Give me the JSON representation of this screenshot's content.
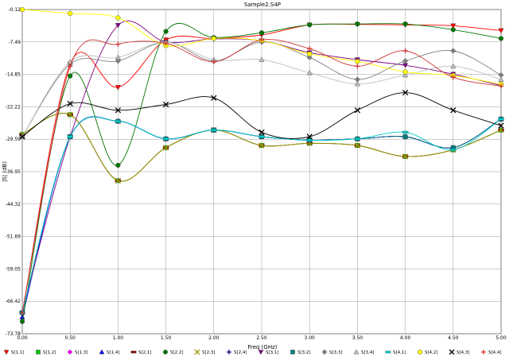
{
  "chart_data": {
    "type": "line",
    "title": "Sample2.S4P",
    "xlabel": "Freq (GHz)",
    "ylabel": "|S| (dB)",
    "xlim": [
      0,
      5
    ],
    "ylim": [
      -73.78,
      -0.12
    ],
    "xticks": [
      "0.00",
      "0.50",
      "1.00",
      "1.50",
      "2.00",
      "2.50",
      "3.00",
      "3.50",
      "4.00",
      "4.50",
      "5.00"
    ],
    "yticks": [
      "-0.12",
      "-7.49",
      "-14.85",
      "-22.22",
      "-29.59",
      "-36.95",
      "-44.32",
      "-51.69",
      "-59.05",
      "-66.42",
      "-73.78"
    ],
    "grid": true,
    "legend_position": "bottom",
    "series": [
      {
        "name": "S[1,1]",
        "color": "#ff0000",
        "marker": "triangle-down",
        "x": [
          0,
          0.5,
          1.0,
          1.5,
          2.0,
          2.5,
          3.0,
          3.5,
          4.0,
          4.5,
          5.0
        ],
        "y": [
          -69.0,
          -12.5,
          -17.8,
          -7.0,
          -6.7,
          -5.9,
          -3.6,
          -3.5,
          -3.6,
          -3.8,
          -4.9
        ]
      },
      {
        "name": "S[1,2]",
        "color": "#00cc00",
        "marker": "square",
        "x": [
          0,
          0.5,
          1.0,
          1.5,
          2.0,
          2.5,
          3.0,
          3.5,
          4.0,
          4.5,
          5.0
        ],
        "y": [
          -28.5,
          -24.0,
          -39.0,
          -31.5,
          -27.5,
          -31.0,
          -30.5,
          -31.0,
          -33.5,
          -32.0,
          -27.5
        ]
      },
      {
        "name": "S[1,3]",
        "color": "#ff00ff",
        "marker": "diamond",
        "x": [
          0,
          0.5,
          1.0,
          1.5,
          2.0,
          2.5,
          3.0,
          3.5,
          4.0,
          4.5,
          5.0
        ],
        "y": [
          -69.0,
          -29.0,
          -25.5,
          -29.5,
          -27.5,
          -29.0,
          -29.8,
          -29.5,
          -29.0,
          -31.5,
          -25.0
        ]
      },
      {
        "name": "S[1,4]",
        "color": "#0000ff",
        "marker": "triangle-up",
        "x": [
          0,
          0.5,
          1.0,
          1.5,
          2.0,
          2.5,
          3.0,
          3.5,
          4.0,
          4.5,
          5.0
        ],
        "y": [
          -70.0,
          -29.0,
          -25.5,
          -29.5,
          -27.5,
          -29.0,
          -29.8,
          -29.5,
          -29.0,
          -31.5,
          -25.0
        ]
      },
      {
        "name": "S[2,1]",
        "color": "#800000",
        "marker": "dash",
        "x": [
          0,
          0.5,
          1.0,
          1.5,
          2.0,
          2.5,
          3.0,
          3.5,
          4.0,
          4.5,
          5.0
        ],
        "y": [
          -28.5,
          -24.0,
          -39.0,
          -31.5,
          -27.5,
          -31.0,
          -30.5,
          -31.0,
          -33.5,
          -32.0,
          -27.5
        ]
      },
      {
        "name": "S[2,2]",
        "color": "#007700",
        "marker": "circle",
        "x": [
          0,
          0.5,
          1.0,
          1.5,
          2.0,
          2.5,
          3.0,
          3.5,
          4.0,
          4.5,
          5.0
        ],
        "y": [
          -71.0,
          -15.2,
          -35.5,
          -5.1,
          -6.5,
          -5.4,
          -3.6,
          -3.4,
          -3.4,
          -4.7,
          -6.7
        ]
      },
      {
        "name": "S[2,3]",
        "color": "#999900",
        "marker": "x",
        "x": [
          0,
          0.5,
          1.0,
          1.5,
          2.0,
          2.5,
          3.0,
          3.5,
          4.0,
          4.5,
          5.0
        ],
        "y": [
          -28.5,
          -24.0,
          -39.0,
          -31.5,
          -27.5,
          -31.0,
          -30.5,
          -31.0,
          -33.5,
          -32.0,
          -27.5
        ]
      },
      {
        "name": "S[2,4]",
        "color": "#000080",
        "marker": "plus",
        "x": [
          0,
          0.5,
          1.0,
          1.5,
          2.0,
          2.5,
          3.0,
          3.5,
          4.0,
          4.5,
          5.0
        ],
        "y": [
          -69.0,
          -29.0,
          -25.5,
          -29.5,
          -27.5,
          -29.0,
          -29.8,
          -29.5,
          -29.0,
          -31.5,
          -25.0
        ]
      },
      {
        "name": "S[3,1]",
        "color": "#800080",
        "marker": "triangle-down",
        "x": [
          0,
          0.5,
          1.0,
          1.5,
          2.0,
          2.5,
          3.0,
          3.5,
          4.0,
          4.5,
          5.0
        ],
        "y": [
          -69.0,
          -29.0,
          -3.7,
          -7.5,
          -6.8,
          -7.2,
          -9.9,
          -11.5,
          -12.8,
          -14.8,
          -17.4
        ]
      },
      {
        "name": "S[3,2]",
        "color": "#008080",
        "marker": "square",
        "x": [
          0,
          0.5,
          1.0,
          1.5,
          2.0,
          2.5,
          3.0,
          3.5,
          4.0,
          4.5,
          5.0
        ],
        "y": [
          -69.0,
          -29.0,
          -25.5,
          -29.5,
          -27.5,
          -29.0,
          -29.8,
          -29.5,
          -29.0,
          -31.5,
          -25.0
        ]
      },
      {
        "name": "S[3,3]",
        "color": "#808080",
        "marker": "diamond",
        "x": [
          0,
          0.5,
          1.0,
          1.5,
          2.0,
          2.5,
          3.0,
          3.5,
          4.0,
          4.5,
          5.0
        ],
        "y": [
          -29.0,
          -12.5,
          -11.8,
          -7.5,
          -11.8,
          -7.5,
          -11.0,
          -16.0,
          -11.8,
          -9.5,
          -15.0
        ]
      },
      {
        "name": "S[3,4]",
        "color": "#c0c0c0",
        "marker": "triangle-up",
        "x": [
          0,
          0.5,
          1.0,
          1.5,
          2.0,
          2.5,
          3.0,
          3.5,
          4.0,
          4.5,
          5.0
        ],
        "y": [
          -29.0,
          -12.0,
          -11.0,
          -7.5,
          -11.5,
          -11.5,
          -14.5,
          -17.0,
          -15.0,
          -13.0,
          -16.0
        ]
      },
      {
        "name": "S[4,1]",
        "color": "#00cccc",
        "marker": "dash",
        "x": [
          0,
          0.5,
          1.0,
          1.5,
          2.0,
          2.5,
          3.0,
          3.5,
          4.0,
          4.5,
          5.0
        ],
        "y": [
          -69.0,
          -29.0,
          -25.5,
          -29.5,
          -27.5,
          -29.0,
          -29.8,
          -29.5,
          -28.0,
          -32.0,
          -25.0
        ]
      },
      {
        "name": "S[4,2]",
        "color": "#ffff00",
        "marker": "circle",
        "x": [
          0,
          0.5,
          1.0,
          1.5,
          2.0,
          2.5,
          3.0,
          3.5,
          4.0,
          4.5,
          5.0
        ],
        "y": [
          -0.12,
          -1.0,
          -2.0,
          -8.3,
          -6.7,
          -7.2,
          -10.2,
          -11.9,
          -14.3,
          -15.1,
          -17.1
        ]
      },
      {
        "name": "S[4,3]",
        "color": "#000000",
        "marker": "x",
        "x": [
          0,
          0.5,
          1.0,
          1.5,
          2.0,
          2.5,
          3.0,
          3.5,
          4.0,
          4.5,
          5.0
        ],
        "y": [
          -29.0,
          -21.5,
          -23.0,
          -21.7,
          -20.2,
          -28.0,
          -29.0,
          -23.0,
          -19.0,
          -23.0,
          -26.5
        ]
      },
      {
        "name": "S[4,4]",
        "color": "#cc3333",
        "marker": "plus",
        "x": [
          0,
          0.5,
          1.0,
          1.5,
          2.0,
          2.5,
          3.0,
          3.5,
          4.0,
          4.5,
          5.0
        ],
        "y": [
          -69.0,
          -13.0,
          -8.0,
          -7.8,
          -12.0,
          -7.0,
          -9.0,
          -13.0,
          -9.5,
          -15.5,
          -17.5
        ]
      }
    ]
  }
}
